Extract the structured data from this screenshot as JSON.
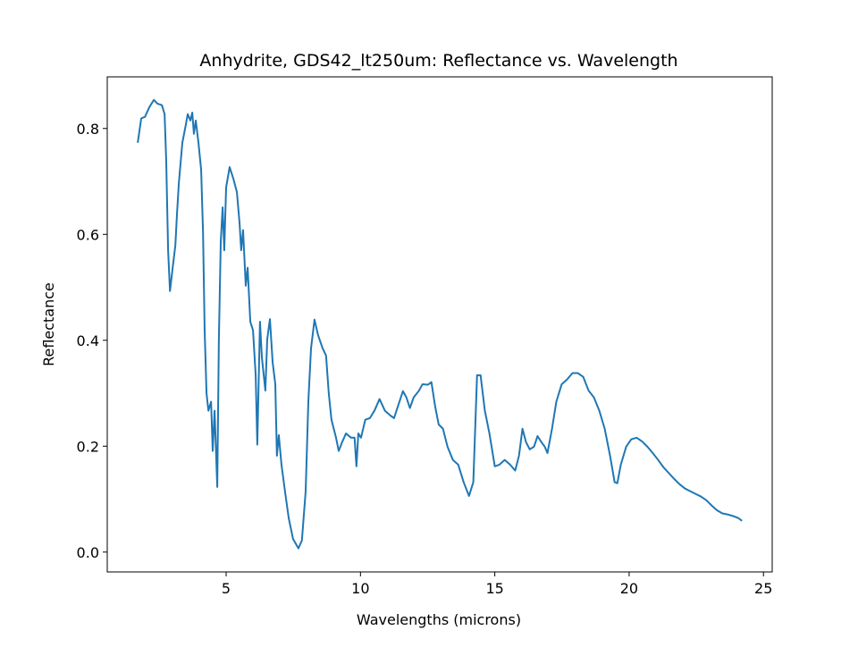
{
  "chart_data": {
    "type": "line",
    "title": "Anhydrite, GDS42_lt250um: Reflectance vs. Wavelength",
    "x_label": "Wavelengths (microns)",
    "y_label": "Reflectance",
    "xlim": [
      0.575,
      25.325
    ],
    "ylim": [
      -0.0375,
      0.8975
    ],
    "xticks": [
      5,
      10,
      15,
      20,
      25
    ],
    "yticks": [
      {
        "value": 0,
        "label": "0.0"
      },
      0.2,
      0.4,
      0.6,
      0.8
    ],
    "grid": false,
    "series": [
      {
        "color": "#1f77b4",
        "x": [
          1.71,
          1.84,
          1.98,
          2.14,
          2.31,
          2.44,
          2.61,
          2.71,
          2.77,
          2.84,
          2.91,
          3.01,
          3.11,
          3.17,
          3.24,
          3.37,
          3.5,
          3.57,
          3.67,
          3.74,
          3.8,
          3.87,
          3.97,
          4.07,
          4.14,
          4.2,
          4.27,
          4.34,
          4.44,
          4.5,
          4.57,
          4.67,
          4.73,
          4.8,
          4.87,
          4.93,
          5.0,
          5.13,
          5.27,
          5.4,
          5.5,
          5.56,
          5.63,
          5.73,
          5.8,
          5.9,
          6.0,
          6.1,
          6.16,
          6.26,
          6.33,
          6.46,
          6.53,
          6.63,
          6.73,
          6.83,
          6.89,
          6.96,
          7.06,
          7.19,
          7.33,
          7.49,
          7.69,
          7.82,
          7.96,
          8.06,
          8.16,
          8.29,
          8.42,
          8.59,
          8.72,
          8.82,
          8.92,
          9.09,
          9.19,
          9.32,
          9.46,
          9.65,
          9.78,
          9.85,
          9.92,
          10.02,
          10.18,
          10.35,
          10.52,
          10.71,
          10.91,
          11.11,
          11.25,
          11.45,
          11.58,
          11.71,
          11.84,
          11.98,
          12.18,
          12.31,
          12.51,
          12.64,
          12.78,
          12.91,
          13.07,
          13.24,
          13.44,
          13.64,
          13.84,
          14.04,
          14.2,
          14.34,
          14.47,
          14.63,
          14.8,
          15.0,
          15.17,
          15.37,
          15.57,
          15.76,
          15.9,
          16.03,
          16.16,
          16.3,
          16.46,
          16.59,
          16.73,
          16.86,
          16.96,
          17.13,
          17.29,
          17.49,
          17.69,
          17.89,
          18.09,
          18.29,
          18.49,
          18.69,
          18.89,
          19.09,
          19.29,
          19.46,
          19.56,
          19.69,
          19.89,
          20.08,
          20.28,
          20.48,
          20.68,
          20.88,
          21.08,
          21.28,
          21.48,
          21.68,
          21.88,
          22.08,
          22.27,
          22.47,
          22.67,
          22.87,
          23.07,
          23.27,
          23.47,
          23.67,
          23.87,
          24.07,
          24.2
        ],
        "values": [
          0.773,
          0.819,
          0.822,
          0.84,
          0.854,
          0.847,
          0.844,
          0.827,
          0.739,
          0.57,
          0.493,
          0.537,
          0.579,
          0.638,
          0.697,
          0.773,
          0.807,
          0.827,
          0.815,
          0.83,
          0.79,
          0.815,
          0.773,
          0.722,
          0.604,
          0.419,
          0.3,
          0.267,
          0.284,
          0.191,
          0.267,
          0.123,
          0.402,
          0.587,
          0.651,
          0.57,
          0.689,
          0.727,
          0.705,
          0.68,
          0.621,
          0.57,
          0.608,
          0.503,
          0.537,
          0.435,
          0.419,
          0.334,
          0.203,
          0.435,
          0.368,
          0.305,
          0.402,
          0.44,
          0.359,
          0.317,
          0.182,
          0.221,
          0.165,
          0.115,
          0.064,
          0.025,
          0.007,
          0.022,
          0.115,
          0.284,
          0.385,
          0.439,
          0.41,
          0.385,
          0.371,
          0.3,
          0.25,
          0.216,
          0.191,
          0.208,
          0.224,
          0.216,
          0.216,
          0.162,
          0.224,
          0.216,
          0.25,
          0.253,
          0.267,
          0.289,
          0.267,
          0.258,
          0.253,
          0.284,
          0.304,
          0.292,
          0.272,
          0.292,
          0.305,
          0.317,
          0.316,
          0.321,
          0.275,
          0.241,
          0.233,
          0.199,
          0.174,
          0.165,
          0.132,
          0.106,
          0.132,
          0.334,
          0.334,
          0.267,
          0.224,
          0.162,
          0.165,
          0.174,
          0.165,
          0.154,
          0.182,
          0.233,
          0.208,
          0.194,
          0.199,
          0.219,
          0.208,
          0.199,
          0.187,
          0.233,
          0.284,
          0.317,
          0.326,
          0.338,
          0.338,
          0.331,
          0.305,
          0.292,
          0.267,
          0.233,
          0.182,
          0.132,
          0.13,
          0.165,
          0.199,
          0.213,
          0.216,
          0.209,
          0.199,
          0.187,
          0.174,
          0.16,
          0.149,
          0.138,
          0.128,
          0.12,
          0.115,
          0.11,
          0.105,
          0.098,
          0.088,
          0.079,
          0.073,
          0.071,
          0.068,
          0.064,
          0.059
        ]
      }
    ]
  }
}
